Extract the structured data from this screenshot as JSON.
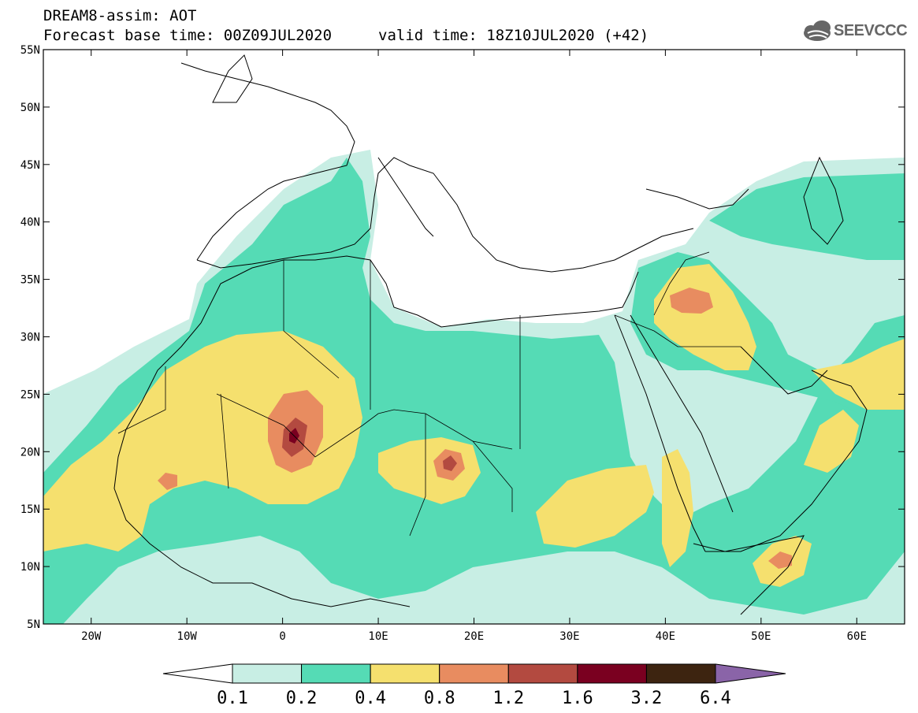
{
  "header": {
    "title": "DREAM8-assim: AOT",
    "forecast_base": "Forecast base time: 00Z09JUL2020",
    "valid_time": "valid time: 18Z10JUL2020 (+42)",
    "logo_text": "SEEVCCC"
  },
  "map": {
    "lon_range": [
      -25,
      65
    ],
    "lat_range": [
      5,
      55
    ],
    "lat_labels": [
      "55N",
      "50N",
      "45N",
      "40N",
      "35N",
      "30N",
      "25N",
      "20N",
      "15N",
      "10N",
      "5N"
    ],
    "lon_labels": [
      "20W",
      "10W",
      "0",
      "10E",
      "20E",
      "30E",
      "40E",
      "50E",
      "60E"
    ]
  },
  "legend": {
    "levels": [
      "0.1",
      "0.2",
      "0.4",
      "0.8",
      "1.2",
      "1.6",
      "3.2",
      "6.4"
    ],
    "colors": [
      "#ffffff",
      "#c8eee4",
      "#55dbb5",
      "#f5e06e",
      "#e88c60",
      "#b34a40",
      "#7a0020",
      "#3d2410",
      "#8a64a8"
    ]
  },
  "colors": {
    "c1": "#c8eee4",
    "c2": "#55dbb5",
    "c3": "#f5e06e",
    "c4": "#e88c60",
    "c5": "#b34a40",
    "c6": "#7a0020",
    "coast": "#000000"
  }
}
